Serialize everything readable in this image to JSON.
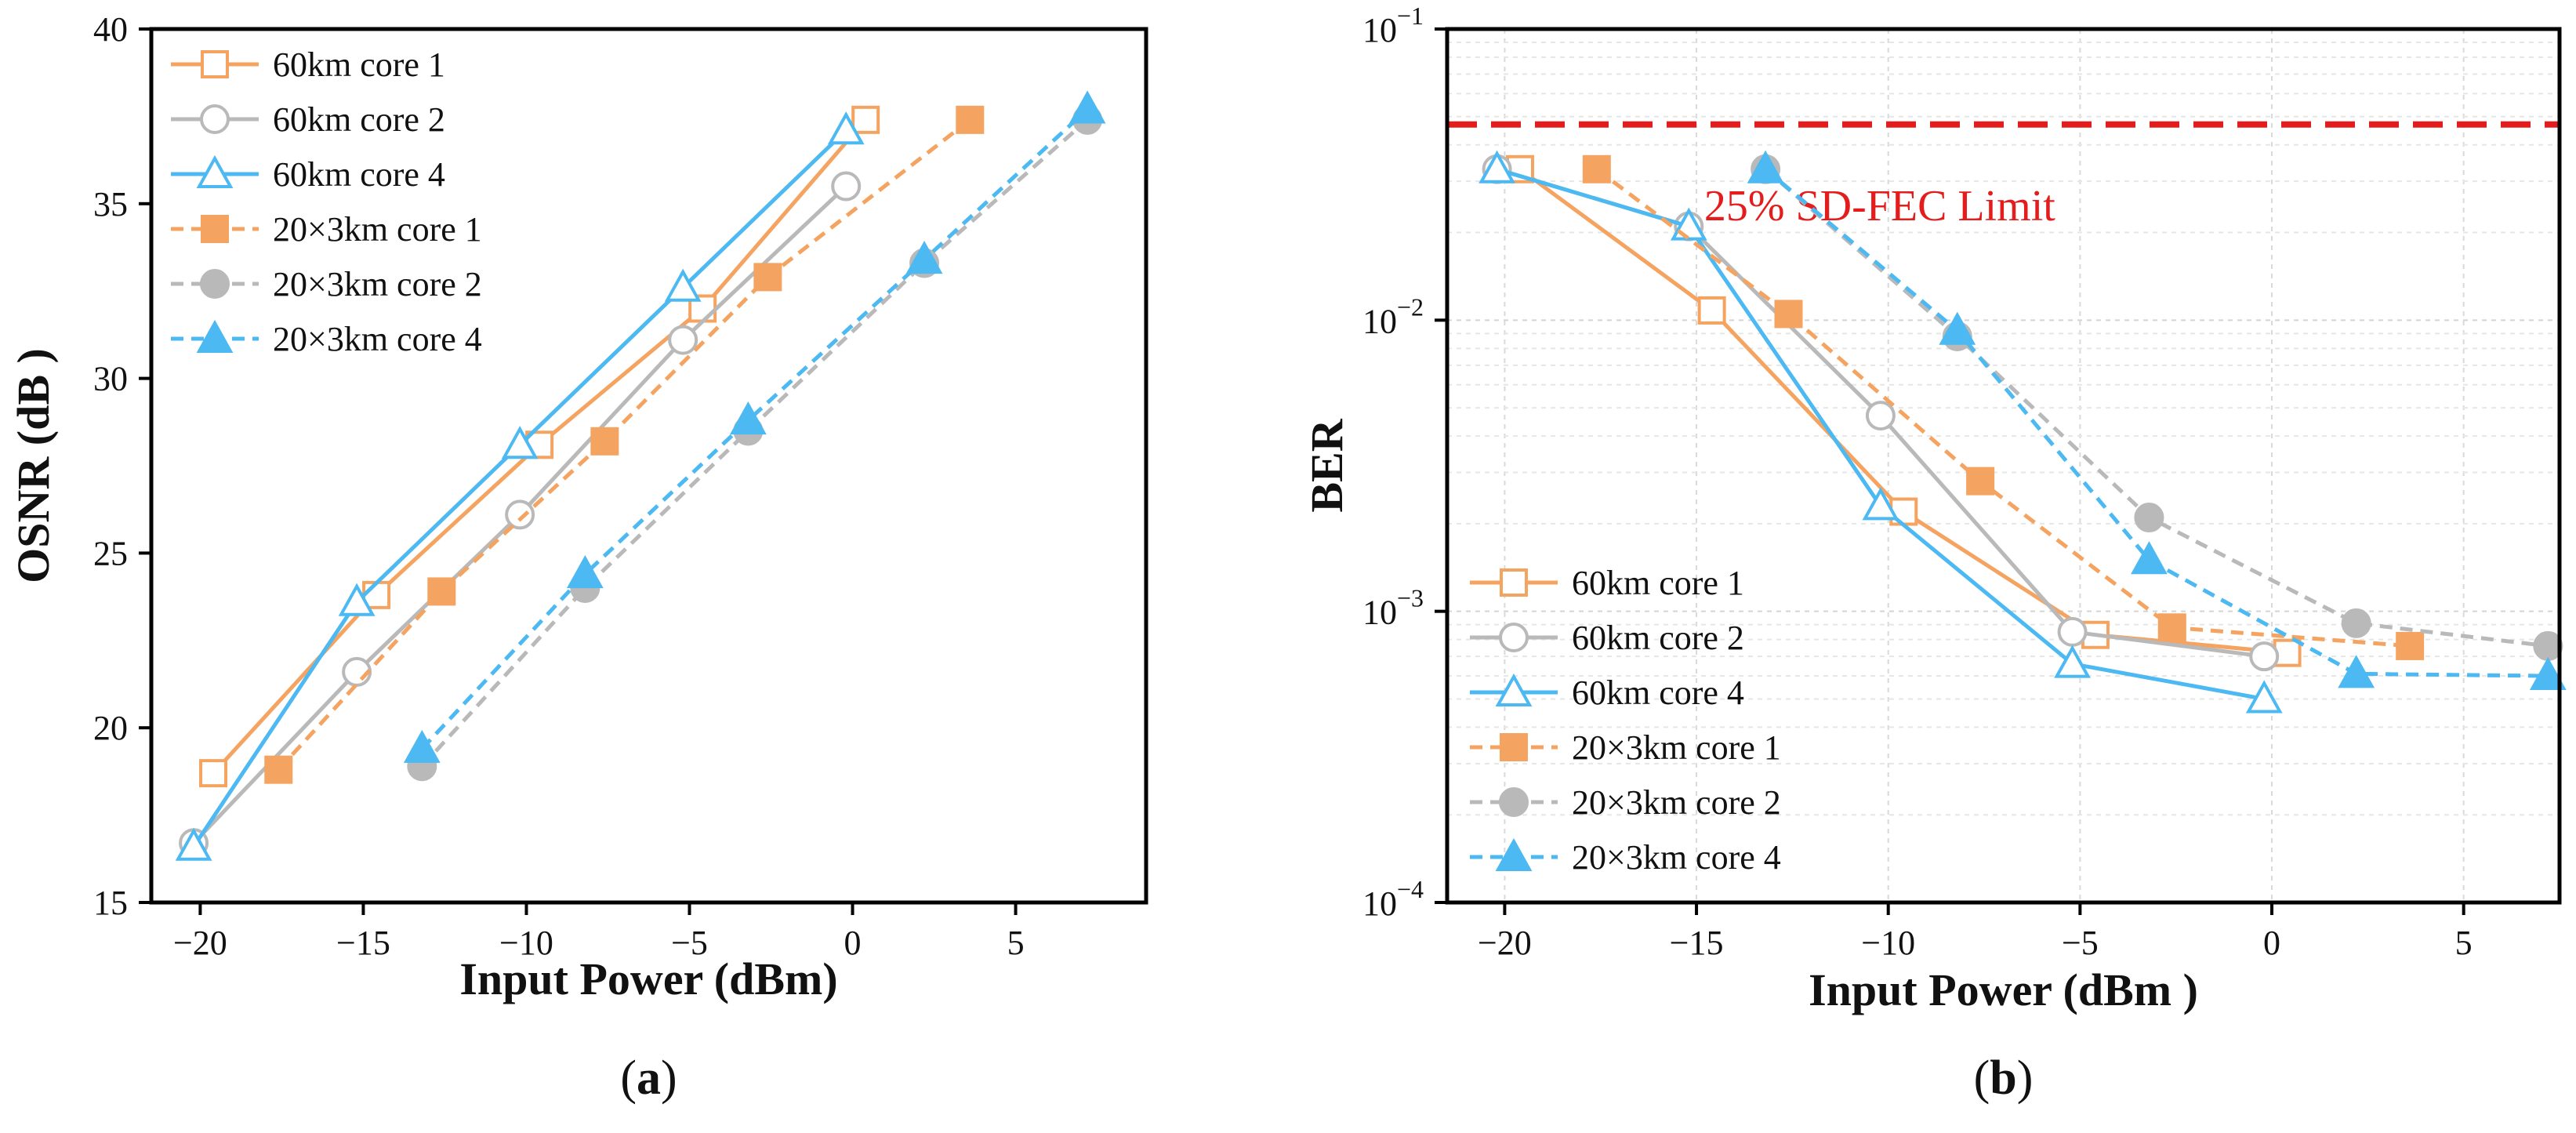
{
  "chart_data": [
    {
      "type": "line",
      "panel": "a",
      "panel_label": {
        "open": "(",
        "letter": "a",
        "close": ")"
      },
      "title": "",
      "xlabel": "Input Power (dBm)",
      "ylabel": "OSNR (dB )",
      "xlim": [
        -21.5,
        9
      ],
      "ylim": [
        15,
        40
      ],
      "yscale": "linear",
      "xticks": [
        -20,
        -15,
        -10,
        -5,
        0,
        5
      ],
      "xtick_labels": [
        "−20",
        "−15",
        "−10",
        "−5",
        "0",
        "5"
      ],
      "yticks": [
        15,
        20,
        25,
        30,
        35,
        40
      ],
      "ytick_labels": [
        "15",
        "20",
        "25",
        "30",
        "35",
        "40"
      ],
      "grid": false,
      "legend_position": "top-left",
      "series": [
        {
          "name": "60km core 1",
          "color": "#f4a460",
          "dash": false,
          "marker": "square",
          "filled": false,
          "x": [
            -19.6,
            -14.6,
            -9.6,
            -4.6,
            0.4
          ],
          "y": [
            18.7,
            23.8,
            28.1,
            32.0,
            37.4
          ]
        },
        {
          "name": "60km core 2",
          "color": "#b9b9b9",
          "dash": false,
          "marker": "circle",
          "filled": false,
          "x": [
            -20.2,
            -15.2,
            -10.2,
            -5.2,
            -0.2
          ],
          "y": [
            16.7,
            21.6,
            26.1,
            31.1,
            35.5
          ]
        },
        {
          "name": "60km core 4",
          "color": "#4cb9f2",
          "dash": false,
          "marker": "triangle",
          "filled": false,
          "x": [
            -20.2,
            -15.2,
            -10.2,
            -5.2,
            -0.2
          ],
          "y": [
            16.6,
            23.6,
            28.1,
            32.6,
            37.1
          ]
        },
        {
          "name": "20×3km core 1",
          "color": "#f4a460",
          "dash": true,
          "marker": "square",
          "filled": true,
          "x": [
            -17.6,
            -12.6,
            -7.6,
            -2.6,
            3.6
          ],
          "y": [
            18.8,
            23.9,
            28.2,
            32.9,
            37.4
          ]
        },
        {
          "name": "20×3km core 2",
          "color": "#b9b9b9",
          "dash": true,
          "marker": "circle",
          "filled": true,
          "x": [
            -13.2,
            -8.2,
            -3.2,
            2.2,
            7.2
          ],
          "y": [
            18.9,
            24.0,
            28.5,
            33.3,
            37.4
          ]
        },
        {
          "name": "20×3km core 4",
          "color": "#4cb9f2",
          "dash": true,
          "marker": "triangle",
          "filled": true,
          "x": [
            -13.2,
            -8.2,
            -3.2,
            2.2,
            7.2
          ],
          "y": [
            19.4,
            24.4,
            28.8,
            33.4,
            37.7
          ]
        }
      ]
    },
    {
      "type": "line",
      "panel": "b",
      "panel_label": {
        "open": "(",
        "letter": "b",
        "close": ")"
      },
      "title": "",
      "xlabel": "Input Power (dBm )",
      "ylabel": "BER",
      "xlim": [
        -21.5,
        7.5
      ],
      "ylim": [
        0.0001,
        0.1
      ],
      "yscale": "log",
      "xticks": [
        -20,
        -15,
        -10,
        -5,
        0,
        5
      ],
      "xtick_labels": [
        "−20",
        "−15",
        "−10",
        "−5",
        "0",
        "5"
      ],
      "ytick_labels": [
        {
          "base": "10",
          "exp": "−4",
          "value": 0.0001
        },
        {
          "base": "10",
          "exp": "−3",
          "value": 0.001
        },
        {
          "base": "10",
          "exp": "−2",
          "value": 0.01
        },
        {
          "base": "10",
          "exp": "−1",
          "value": 0.1
        }
      ],
      "grid": true,
      "legend_position": "bottom-left",
      "threshold": {
        "label": "25% SD-FEC Limit",
        "value": 0.047,
        "color": "#e41c1c"
      },
      "series": [
        {
          "name": "60km core 1",
          "color": "#f4a460",
          "dash": false,
          "marker": "square",
          "filled": false,
          "x": [
            -19.6,
            -14.6,
            -9.6,
            -4.6,
            0.4
          ],
          "y": [
            0.033,
            0.0108,
            0.0022,
            0.00083,
            0.00072
          ]
        },
        {
          "name": "60km core 2",
          "color": "#b9b9b9",
          "dash": false,
          "marker": "circle",
          "filled": false,
          "x": [
            -20.2,
            -15.2,
            -10.2,
            -5.2,
            -0.2
          ],
          "y": [
            0.033,
            0.021,
            0.0047,
            0.00085,
            0.0007
          ]
        },
        {
          "name": "60km core 4",
          "color": "#4cb9f2",
          "dash": false,
          "marker": "triangle",
          "filled": false,
          "x": [
            -20.2,
            -15.2,
            -10.2,
            -5.2,
            -0.2
          ],
          "y": [
            0.033,
            0.021,
            0.0023,
            0.00066,
            0.0005
          ]
        },
        {
          "name": "20×3km core 1",
          "color": "#f4a460",
          "dash": true,
          "marker": "square",
          "filled": true,
          "x": [
            -17.6,
            -12.6,
            -7.6,
            -2.6,
            3.6
          ],
          "y": [
            0.033,
            0.0105,
            0.0028,
            0.00088,
            0.00076
          ]
        },
        {
          "name": "20×3km core 2",
          "color": "#b9b9b9",
          "dash": true,
          "marker": "circle",
          "filled": true,
          "x": [
            -13.2,
            -8.2,
            -3.2,
            2.2,
            7.2
          ],
          "y": [
            0.033,
            0.0088,
            0.0021,
            0.00091,
            0.00076
          ]
        },
        {
          "name": "20×3km core 4",
          "color": "#4cb9f2",
          "dash": true,
          "marker": "triangle",
          "filled": true,
          "x": [
            -13.2,
            -8.2,
            -3.2,
            2.2,
            7.2
          ],
          "y": [
            0.033,
            0.0092,
            0.0015,
            0.00061,
            0.0006
          ]
        }
      ]
    }
  ]
}
